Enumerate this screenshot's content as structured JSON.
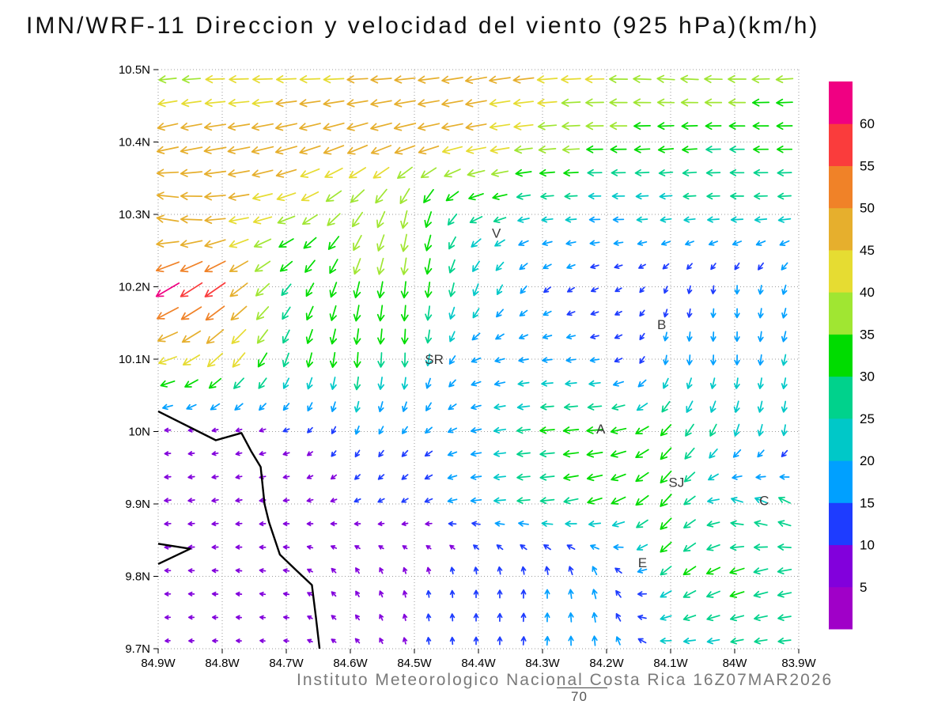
{
  "title": "IMN/WRF-11 Direccion y velocidad del viento (925 hPa)(km/h)",
  "footer": {
    "credit": "Instituto Meteorologico Nacional Costa Rica 16Z07MAR2026",
    "extra_label": "70"
  },
  "chart_data": {
    "type": "quiver",
    "title": "IMN/WRF-11 Direccion y velocidad del viento (925 hPa)(km/h)",
    "units": "km/h",
    "pressure_level": "925 hPa",
    "x_axis": {
      "ticks": [
        "84.9W",
        "84.8W",
        "84.7W",
        "84.6W",
        "84.5W",
        "84.4W",
        "84.3W",
        "84.2W",
        "84.1W",
        "84W",
        "83.9W"
      ],
      "range": [
        84.9,
        83.9
      ],
      "grid": true
    },
    "y_axis": {
      "ticks": [
        "10.5N",
        "10.4N",
        "10.3N",
        "10.2N",
        "10.1N",
        "10N",
        "9.9N",
        "9.8N",
        "9.7N"
      ],
      "range": [
        9.7,
        10.5
      ],
      "grid": true
    },
    "colorbar": {
      "levels": [
        5,
        10,
        15,
        20,
        25,
        30,
        35,
        40,
        45,
        50,
        55,
        60
      ],
      "colors": [
        "#A000C8",
        "#8200DC",
        "#1E3CFF",
        "#00A0FF",
        "#00C8C8",
        "#00D28C",
        "#00DC00",
        "#A0E632",
        "#E6DC32",
        "#E6AF2D",
        "#F08228",
        "#FA3C3C",
        "#F00082"
      ],
      "label_values": [
        "60",
        "55",
        "50",
        "45",
        "40",
        "35",
        "30",
        "25",
        "20",
        "15",
        "10",
        "5"
      ],
      "position": "right"
    },
    "stations": [
      {
        "label": "V",
        "lon": 84.372,
        "lat": 10.273
      },
      {
        "label": "B",
        "lon": 84.114,
        "lat": 10.147
      },
      {
        "label": "SR",
        "lon": 84.469,
        "lat": 10.099
      },
      {
        "label": "A",
        "lon": 84.209,
        "lat": 10.003
      },
      {
        "label": "SJ",
        "lon": 84.091,
        "lat": 9.929
      },
      {
        "label": "C",
        "lon": 83.954,
        "lat": 9.904
      },
      {
        "label": "E",
        "lon": 84.144,
        "lat": 9.818
      }
    ],
    "coastlines": [
      [
        [
          84.9,
          10.028
        ],
        [
          84.81,
          9.988
        ],
        [
          84.77,
          9.998
        ],
        [
          84.755,
          9.973
        ],
        [
          84.74,
          9.951
        ],
        [
          84.734,
          9.9
        ],
        [
          84.727,
          9.875
        ],
        [
          84.71,
          9.83
        ],
        [
          84.684,
          9.808
        ],
        [
          84.66,
          9.788
        ],
        [
          84.654,
          9.745
        ],
        [
          84.648,
          9.7
        ]
      ],
      [
        [
          84.9,
          9.845
        ],
        [
          84.85,
          9.838
        ],
        [
          84.9,
          9.817
        ]
      ]
    ],
    "wind_grid": {
      "comment_dir": "pointing direction of arrows in degrees, 0=east 90=north, speeds in km/h",
      "lats": [
        10.5,
        10.4,
        10.3,
        10.2,
        10.1,
        10.0,
        9.9,
        9.8,
        9.7
      ],
      "lons": [
        84.9,
        84.8,
        84.7,
        84.6,
        84.5,
        84.4,
        84.3,
        84.2,
        84.1,
        84.0,
        83.9
      ],
      "dir": [
        [
          185,
          180,
          180,
          180,
          185,
          190,
          185,
          180,
          175,
          180,
          185
        ],
        [
          195,
          190,
          195,
          200,
          195,
          190,
          185,
          180,
          185,
          180,
          180
        ],
        [
          165,
          185,
          200,
          230,
          260,
          200,
          185,
          180,
          185,
          180,
          185
        ],
        [
          210,
          215,
          230,
          255,
          265,
          250,
          220,
          200,
          250,
          270,
          250
        ],
        [
          195,
          225,
          250,
          265,
          270,
          200,
          185,
          190,
          265,
          270,
          255
        ],
        [
          180,
          190,
          200,
          250,
          230,
          190,
          185,
          185,
          230,
          250,
          265
        ],
        [
          185,
          190,
          185,
          200,
          210,
          185,
          185,
          200,
          230,
          160,
          150
        ],
        [
          180,
          175,
          170,
          120,
          100,
          90,
          90,
          110,
          220,
          200,
          190
        ],
        [
          185,
          180,
          175,
          140,
          100,
          90,
          85,
          95,
          180,
          190,
          185
        ]
      ],
      "speed": [
        [
          35,
          40,
          42,
          45,
          45,
          48,
          45,
          40,
          38,
          40,
          35
        ],
        [
          48,
          50,
          50,
          48,
          50,
          45,
          38,
          35,
          32,
          30,
          32
        ],
        [
          50,
          45,
          40,
          38,
          40,
          28,
          22,
          20,
          22,
          25,
          25
        ],
        [
          62,
          55,
          30,
          35,
          35,
          25,
          15,
          12,
          12,
          15,
          18
        ],
        [
          42,
          45,
          30,
          32,
          28,
          18,
          18,
          15,
          18,
          18,
          22
        ],
        [
          8,
          8,
          10,
          15,
          15,
          20,
          30,
          35,
          32,
          25,
          20
        ],
        [
          10,
          10,
          8,
          10,
          12,
          20,
          28,
          32,
          35,
          25,
          28
        ],
        [
          8,
          8,
          8,
          10,
          10,
          12,
          15,
          18,
          30,
          32,
          28
        ],
        [
          6,
          6,
          6,
          8,
          10,
          12,
          15,
          18,
          22,
          25,
          25
        ]
      ]
    }
  }
}
